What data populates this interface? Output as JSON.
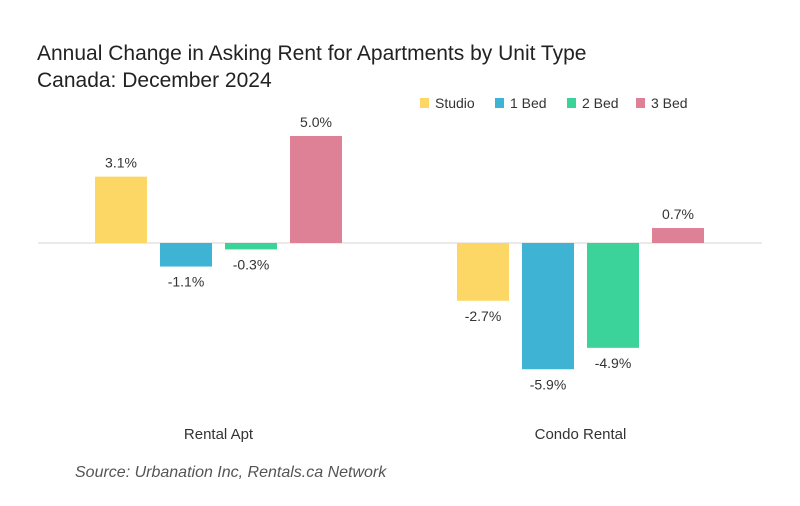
{
  "chart_data": {
    "type": "bar",
    "title": "Annual Change in Asking Rent for Apartments by Unit Type",
    "subtitle": "Canada: December 2024",
    "categories": [
      "Rental Apt",
      "Condo Rental"
    ],
    "series": [
      {
        "name": "Studio",
        "color": "#FDD766",
        "values": [
          3.1,
          -2.7
        ]
      },
      {
        "name": "1 Bed",
        "color": "#3FB3D3",
        "values": [
          -1.1,
          -5.9
        ]
      },
      {
        "name": "2 Bed",
        "color": "#3CD39A",
        "values": [
          -0.3,
          -4.9
        ]
      },
      {
        "name": "3 Bed",
        "color": "#DF8196",
        "values": [
          5.0,
          0.7
        ]
      }
    ],
    "data_labels": [
      [
        "3.1%",
        "-2.7%"
      ],
      [
        "-1.1%",
        "-5.9%"
      ],
      [
        "-0.3%",
        "-4.9%"
      ],
      [
        "5.0%",
        "0.7%"
      ]
    ],
    "ylim": [
      -7.8,
      5.0
    ],
    "grid": false,
    "legend": "top-right",
    "xlabel": "",
    "ylabel": ""
  },
  "source": "Source: Urbanation Inc, Rentals.ca Network"
}
